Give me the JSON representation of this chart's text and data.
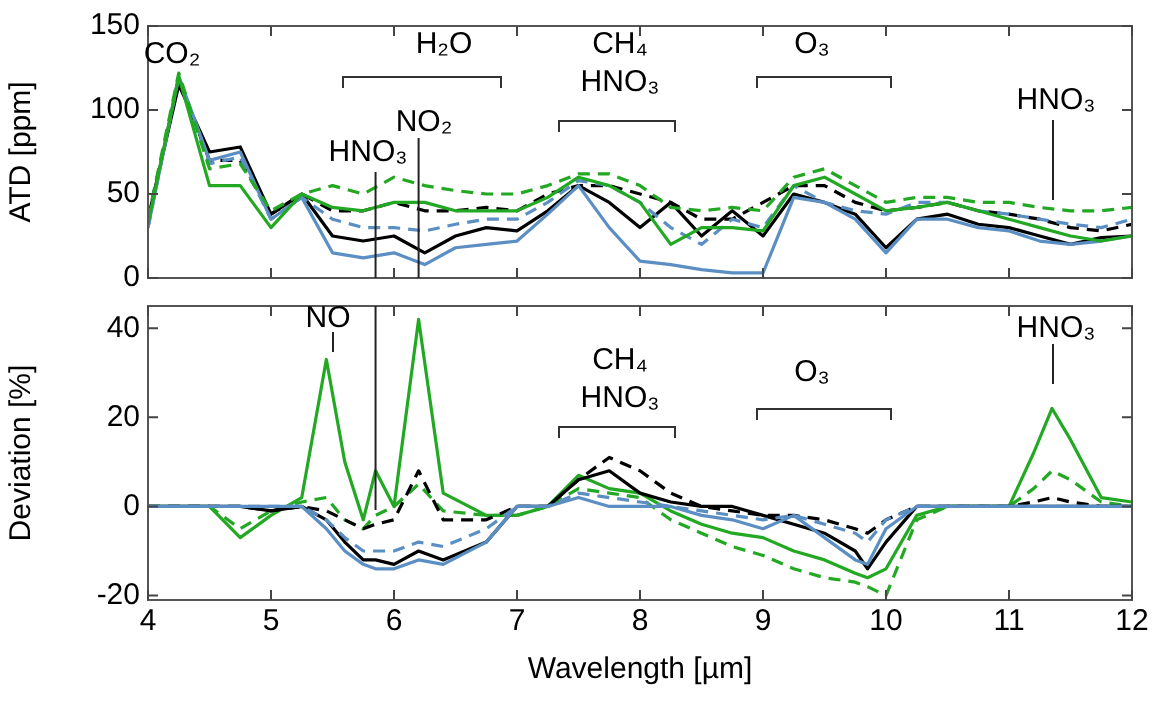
{
  "chart_data": [
    {
      "type": "line",
      "ylabel": "ATD [ppm]",
      "xlim": [
        4,
        12
      ],
      "xticks": [
        4,
        5,
        6,
        7,
        8,
        9,
        10,
        11,
        12
      ],
      "ylim": [
        0,
        150
      ],
      "yticks": [
        0,
        50,
        100,
        150
      ],
      "tick_labels": "y",
      "grid": false,
      "legend": false,
      "marker": "none",
      "x": [
        4,
        4.25,
        4.5,
        4.75,
        5,
        5.25,
        5.5,
        5.75,
        6,
        6.25,
        6.5,
        6.75,
        7,
        7.25,
        7.5,
        7.75,
        8,
        8.25,
        8.5,
        8.75,
        9,
        9.25,
        9.5,
        9.75,
        10,
        10.25,
        10.5,
        10.75,
        11,
        11.25,
        11.5,
        11.75,
        12
      ],
      "series": [
        {
          "color": "#000000",
          "line_style": "solid",
          "values": [
            35,
            115,
            75,
            78,
            38,
            50,
            25,
            22,
            25,
            15,
            25,
            30,
            28,
            40,
            55,
            45,
            30,
            45,
            25,
            40,
            25,
            50,
            45,
            38,
            18,
            35,
            38,
            32,
            30,
            25,
            20,
            24,
            25
          ]
        },
        {
          "color": "#000000",
          "line_style": "dashed",
          "values": [
            35,
            118,
            70,
            70,
            38,
            50,
            40,
            40,
            45,
            40,
            40,
            42,
            40,
            50,
            55,
            55,
            50,
            45,
            35,
            35,
            45,
            55,
            55,
            45,
            40,
            42,
            45,
            40,
            38,
            35,
            30,
            28,
            32
          ]
        },
        {
          "color": "#5b8fc4",
          "line_style": "solid",
          "values": [
            30,
            120,
            70,
            75,
            35,
            48,
            15,
            12,
            15,
            8,
            18,
            20,
            22,
            38,
            55,
            30,
            10,
            8,
            5,
            3,
            3,
            48,
            45,
            35,
            15,
            35,
            35,
            30,
            28,
            22,
            20,
            22,
            25
          ]
        },
        {
          "color": "#5b8fc4",
          "line_style": "dashed",
          "values": [
            30,
            120,
            68,
            72,
            35,
            48,
            35,
            30,
            30,
            28,
            32,
            35,
            35,
            45,
            58,
            55,
            45,
            30,
            20,
            35,
            30,
            55,
            45,
            40,
            38,
            45,
            45,
            40,
            38,
            35,
            32,
            30,
            35
          ]
        },
        {
          "color": "#22a822",
          "line_style": "solid",
          "values": [
            32,
            120,
            55,
            55,
            30,
            50,
            42,
            40,
            45,
            45,
            40,
            40,
            40,
            48,
            60,
            55,
            45,
            20,
            30,
            30,
            28,
            55,
            60,
            50,
            40,
            42,
            45,
            40,
            35,
            30,
            25,
            22,
            25
          ]
        },
        {
          "color": "#22a822",
          "line_style": "dashed",
          "values": [
            35,
            122,
            65,
            68,
            40,
            50,
            55,
            50,
            60,
            55,
            52,
            50,
            50,
            55,
            62,
            62,
            55,
            42,
            40,
            42,
            40,
            60,
            65,
            55,
            45,
            48,
            48,
            45,
            45,
            42,
            40,
            40,
            42
          ]
        }
      ],
      "ref_lines": [
        {
          "axis": "x",
          "value": 5.85
        },
        {
          "axis": "x",
          "value": 6.2
        }
      ],
      "annotations": [
        "CO₂",
        "H₂O",
        "CH₄",
        "HNO₃",
        "O₃",
        "HNO₃",
        "NO₂",
        "HNO₃"
      ]
    },
    {
      "type": "line",
      "ylabel": "Deviation [%]",
      "xlabel": "Wavelength [µm]",
      "xlim": [
        4,
        12
      ],
      "xticks": [
        4,
        5,
        6,
        7,
        8,
        9,
        10,
        11,
        12
      ],
      "ylim": [
        -21,
        45
      ],
      "yticks": [
        -20,
        0,
        20,
        40
      ],
      "grid": false,
      "legend": false,
      "marker": "none",
      "x": [
        4,
        4.5,
        4.75,
        5,
        5.25,
        5.45,
        5.6,
        5.75,
        5.85,
        6,
        6.2,
        6.4,
        6.75,
        7,
        7.25,
        7.5,
        7.75,
        8,
        8.25,
        8.5,
        8.75,
        9,
        9.25,
        9.5,
        9.75,
        9.85,
        10,
        10.25,
        10.5,
        11,
        11.2,
        11.35,
        11.5,
        11.75,
        12
      ],
      "series": [
        {
          "color": "#22a822",
          "line_style": "solid",
          "values": [
            0,
            0,
            -7,
            -2,
            2,
            33,
            10,
            -3,
            8,
            0,
            42,
            3,
            -2,
            -2,
            0,
            7,
            4,
            3,
            -1,
            -4,
            -6,
            -7,
            -10,
            -12,
            -15,
            -16,
            -14,
            -2,
            0,
            0,
            12,
            22,
            15,
            2,
            1
          ]
        },
        {
          "color": "#22a822",
          "line_style": "dashed",
          "values": [
            0,
            0,
            -5,
            -1,
            1,
            2,
            -3,
            -5,
            -2,
            0,
            5,
            -1,
            -2,
            -2,
            0,
            4,
            3,
            2,
            -3,
            -6,
            -9,
            -11,
            -14,
            -16,
            -17,
            -18,
            -20,
            -3,
            0,
            0,
            4,
            8,
            6,
            1,
            0
          ]
        },
        {
          "color": "#000000",
          "line_style": "solid",
          "values": [
            0,
            0,
            0,
            -1,
            0,
            -3,
            -8,
            -12,
            -12,
            -13,
            -10,
            -12,
            -8,
            0,
            0,
            6,
            8,
            3,
            1,
            0,
            0,
            -2,
            -4,
            -6,
            -10,
            -14,
            -8,
            0,
            0,
            0,
            0,
            0,
            0,
            0,
            0
          ]
        },
        {
          "color": "#000000",
          "line_style": "dashed",
          "values": [
            0,
            0,
            0,
            -1,
            0,
            -1,
            -3,
            -5,
            -4,
            -3,
            8,
            -3,
            -3,
            0,
            0,
            6,
            11,
            8,
            3,
            0,
            -1,
            -2,
            -2,
            -3,
            -5,
            -6,
            -3,
            0,
            0,
            0,
            1,
            2,
            1,
            0,
            0
          ]
        },
        {
          "color": "#5b8fc4",
          "line_style": "dashed",
          "values": [
            0,
            0,
            0,
            0,
            0,
            -3,
            -7,
            -10,
            -10,
            -10,
            -8,
            -9,
            -5,
            0,
            0,
            3,
            2,
            1,
            0,
            -1,
            -2,
            -3,
            -2,
            -4,
            -6,
            -8,
            -3,
            0,
            0,
            0,
            0,
            0,
            0,
            0,
            0
          ]
        },
        {
          "color": "#5b8fc4",
          "line_style": "solid",
          "values": [
            0,
            0,
            0,
            0,
            0,
            -5,
            -10,
            -13,
            -14,
            -14,
            -12,
            -13,
            -8,
            0,
            0,
            2,
            0,
            0,
            0,
            -2,
            -3,
            -5,
            -2,
            -7,
            -12,
            -13,
            -5,
            0,
            0,
            0,
            0,
            0,
            0,
            0,
            0
          ]
        }
      ],
      "ref_lines": [
        {
          "axis": "x",
          "value": 5.85
        }
      ],
      "annotations": [
        "NO",
        "CH₄",
        "HNO₃",
        "O₃",
        "HNO₃"
      ]
    }
  ]
}
